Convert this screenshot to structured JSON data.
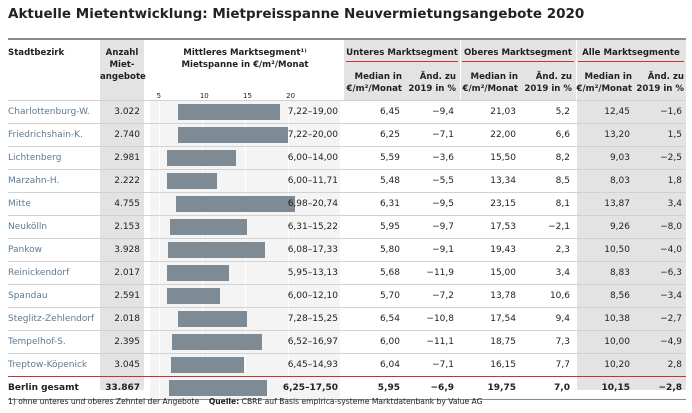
{
  "title": "Aktuelle Mietentwicklung: Mietpreisspanne Neuvermietungsangebote 2020",
  "headers": {
    "stadtbezirk": "Stadtbezirk",
    "anzahl": [
      "Anzahl",
      "Miet-",
      "angebote"
    ],
    "mittleres": [
      "Mittleres Marktsegment¹⁾",
      "Mietspanne in €/m²/Monat"
    ],
    "unteres": "Unteres Marktsegment",
    "oberes": "Oberes Marktsegment",
    "alle": "Alle Marktsegmente",
    "median": [
      "Median in",
      "€/m²/Monat"
    ],
    "aend": [
      "Änd. zu",
      "2019 in %"
    ]
  },
  "chart_data": {
    "type": "table",
    "axis_ticks": [
      "5",
      "10",
      "15",
      "20"
    ],
    "xlim": [
      4,
      26
    ],
    "rows": [
      {
        "name": "Charlottenburg-W.",
        "count": "3.022",
        "low": 7.22,
        "high": 19.0,
        "range": "7,22–19,00",
        "u_med": "6,45",
        "u_chg": "−9,4",
        "o_med": "21,03",
        "o_chg": "5,2",
        "a_med": "12,45",
        "a_chg": "−1,6"
      },
      {
        "name": "Friedrichshain-K.",
        "count": "2.740",
        "low": 7.22,
        "high": 20.0,
        "range": "7,22–20,00",
        "u_med": "6,25",
        "u_chg": "−7,1",
        "o_med": "22,00",
        "o_chg": "6,6",
        "a_med": "13,20",
        "a_chg": "1,5"
      },
      {
        "name": "Lichtenberg",
        "count": "2.981",
        "low": 6.0,
        "high": 14.0,
        "range": "6,00–14,00",
        "u_med": "5,59",
        "u_chg": "−3,6",
        "o_med": "15,50",
        "o_chg": "8,2",
        "a_med": "9,03",
        "a_chg": "−2,5"
      },
      {
        "name": "Marzahn-H.",
        "count": "2.222",
        "low": 6.0,
        "high": 11.71,
        "range": "6,00–11,71",
        "u_med": "5,48",
        "u_chg": "−5,5",
        "o_med": "13,34",
        "o_chg": "8,5",
        "a_med": "8,03",
        "a_chg": "1,8"
      },
      {
        "name": "Mitte",
        "count": "4.755",
        "low": 6.98,
        "high": 20.74,
        "range": "6,98–20,74",
        "u_med": "6,31",
        "u_chg": "−9,5",
        "o_med": "23,15",
        "o_chg": "8,1",
        "a_med": "13,87",
        "a_chg": "3,4"
      },
      {
        "name": "Neukölln",
        "count": "2.153",
        "low": 6.31,
        "high": 15.22,
        "range": "6,31–15,22",
        "u_med": "5,95",
        "u_chg": "−9,7",
        "o_med": "17,53",
        "o_chg": "−2,1",
        "a_med": "9,26",
        "a_chg": "−8,0"
      },
      {
        "name": "Pankow",
        "count": "3.928",
        "low": 6.08,
        "high": 17.33,
        "range": "6,08–17,33",
        "u_med": "5,80",
        "u_chg": "−9,1",
        "o_med": "19,43",
        "o_chg": "2,3",
        "a_med": "10,50",
        "a_chg": "−4,0"
      },
      {
        "name": "Reinickendorf",
        "count": "2.017",
        "low": 5.95,
        "high": 13.13,
        "range": "5,95–13,13",
        "u_med": "5,68",
        "u_chg": "−11,9",
        "o_med": "15,00",
        "o_chg": "3,4",
        "a_med": "8,83",
        "a_chg": "−6,3"
      },
      {
        "name": "Spandau",
        "count": "2.591",
        "low": 6.0,
        "high": 12.1,
        "range": "6,00–12,10",
        "u_med": "5,70",
        "u_chg": "−7,2",
        "o_med": "13,78",
        "o_chg": "10,6",
        "a_med": "8,56",
        "a_chg": "−3,4"
      },
      {
        "name": "Steglitz-Zehlendorf",
        "count": "2.018",
        "low": 7.28,
        "high": 15.25,
        "range": "7,28–15,25",
        "u_med": "6,54",
        "u_chg": "−10,8",
        "o_med": "17,54",
        "o_chg": "9,4",
        "a_med": "10,38",
        "a_chg": "−2,7"
      },
      {
        "name": "Tempelhof-S.",
        "count": "2.395",
        "low": 6.52,
        "high": 16.97,
        "range": "6,52–16,97",
        "u_med": "6,00",
        "u_chg": "−11,1",
        "o_med": "18,75",
        "o_chg": "7,3",
        "a_med": "10,00",
        "a_chg": "−4,9"
      },
      {
        "name": "Treptow-Köpenick",
        "count": "3.045",
        "low": 6.45,
        "high": 14.93,
        "range": "6,45–14,93",
        "u_med": "6,04",
        "u_chg": "−7,1",
        "o_med": "16,15",
        "o_chg": "7,7",
        "a_med": "10,20",
        "a_chg": "2,8"
      }
    ],
    "total": {
      "name": "Berlin gesamt",
      "count": "33.867",
      "low": 6.25,
      "high": 17.5,
      "range": "6,25–17,50",
      "u_med": "5,95",
      "u_chg": "−6,9",
      "o_med": "19,75",
      "o_chg": "7,0",
      "a_med": "10,15",
      "a_chg": "−2,8"
    }
  },
  "footnote": {
    "note": "1) ohne unteres und oberes Zehntel der Angebote",
    "quelle_label": "Quelle:",
    "quelle": "CBRE auf Basis empirica-systeme Marktdatenbank by Value AG"
  },
  "colors": {
    "bar": "#7e8a94",
    "header_bg": "#e3e3e3",
    "accent_line": "#c9322d",
    "name": "#5d7a94"
  }
}
